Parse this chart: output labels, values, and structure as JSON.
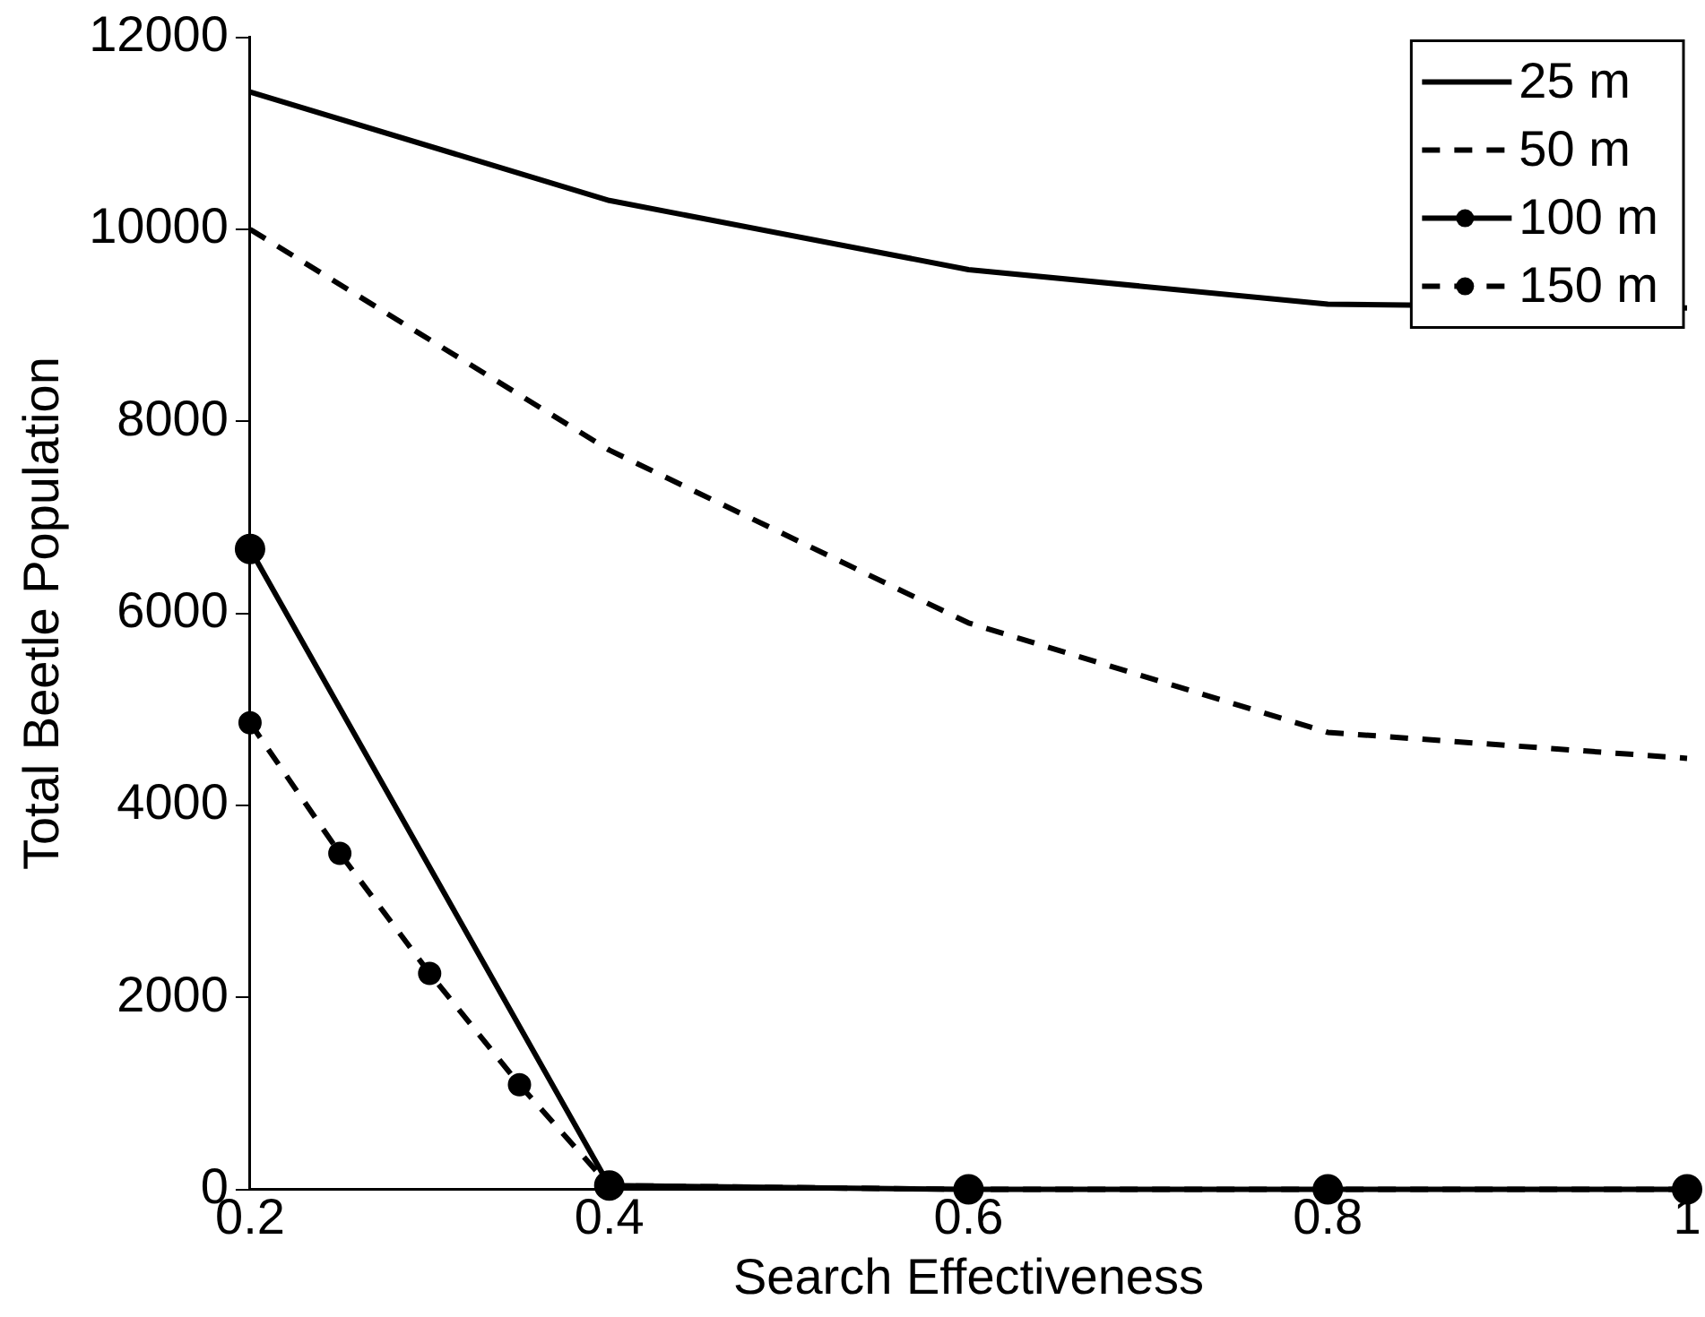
{
  "chart_data": {
    "type": "line",
    "xlabel": "Search Effectiveness",
    "ylabel": "Total Beetle Population",
    "x": [
      0.2,
      0.4,
      0.6,
      0.8,
      1
    ],
    "xlim": [
      0.2,
      1
    ],
    "xticks": [
      0.2,
      0.4,
      0.6,
      0.8,
      1
    ],
    "ylim": [
      0,
      12000
    ],
    "yticks": [
      0,
      2000,
      4000,
      6000,
      8000,
      10000,
      12000
    ],
    "grid": false,
    "legend": "top right",
    "series": [
      {
        "name": "25 m",
        "color": "#000000",
        "line_style": "solid",
        "marker": "none",
        "values": [
          11430,
          10300,
          9580,
          9220,
          9180
        ]
      },
      {
        "name": "50 m",
        "color": "#000000",
        "line_style": "dashed",
        "marker": "none",
        "values": [
          10000,
          7700,
          5900,
          4760,
          4490
        ]
      },
      {
        "name": "100 m",
        "color": "#000000",
        "line_style": "solid",
        "marker": "circle",
        "values": [
          6670,
          40,
          0,
          0,
          0
        ]
      },
      {
        "name": "150 m",
        "color": "#000000",
        "line_style": "dashed",
        "marker": "circle",
        "x": [
          0.2,
          0.25,
          0.3,
          0.35,
          0.4,
          0.6,
          0.8,
          1
        ],
        "values": [
          4860,
          3500,
          2250,
          1090,
          40,
          0,
          0,
          0
        ]
      }
    ]
  }
}
